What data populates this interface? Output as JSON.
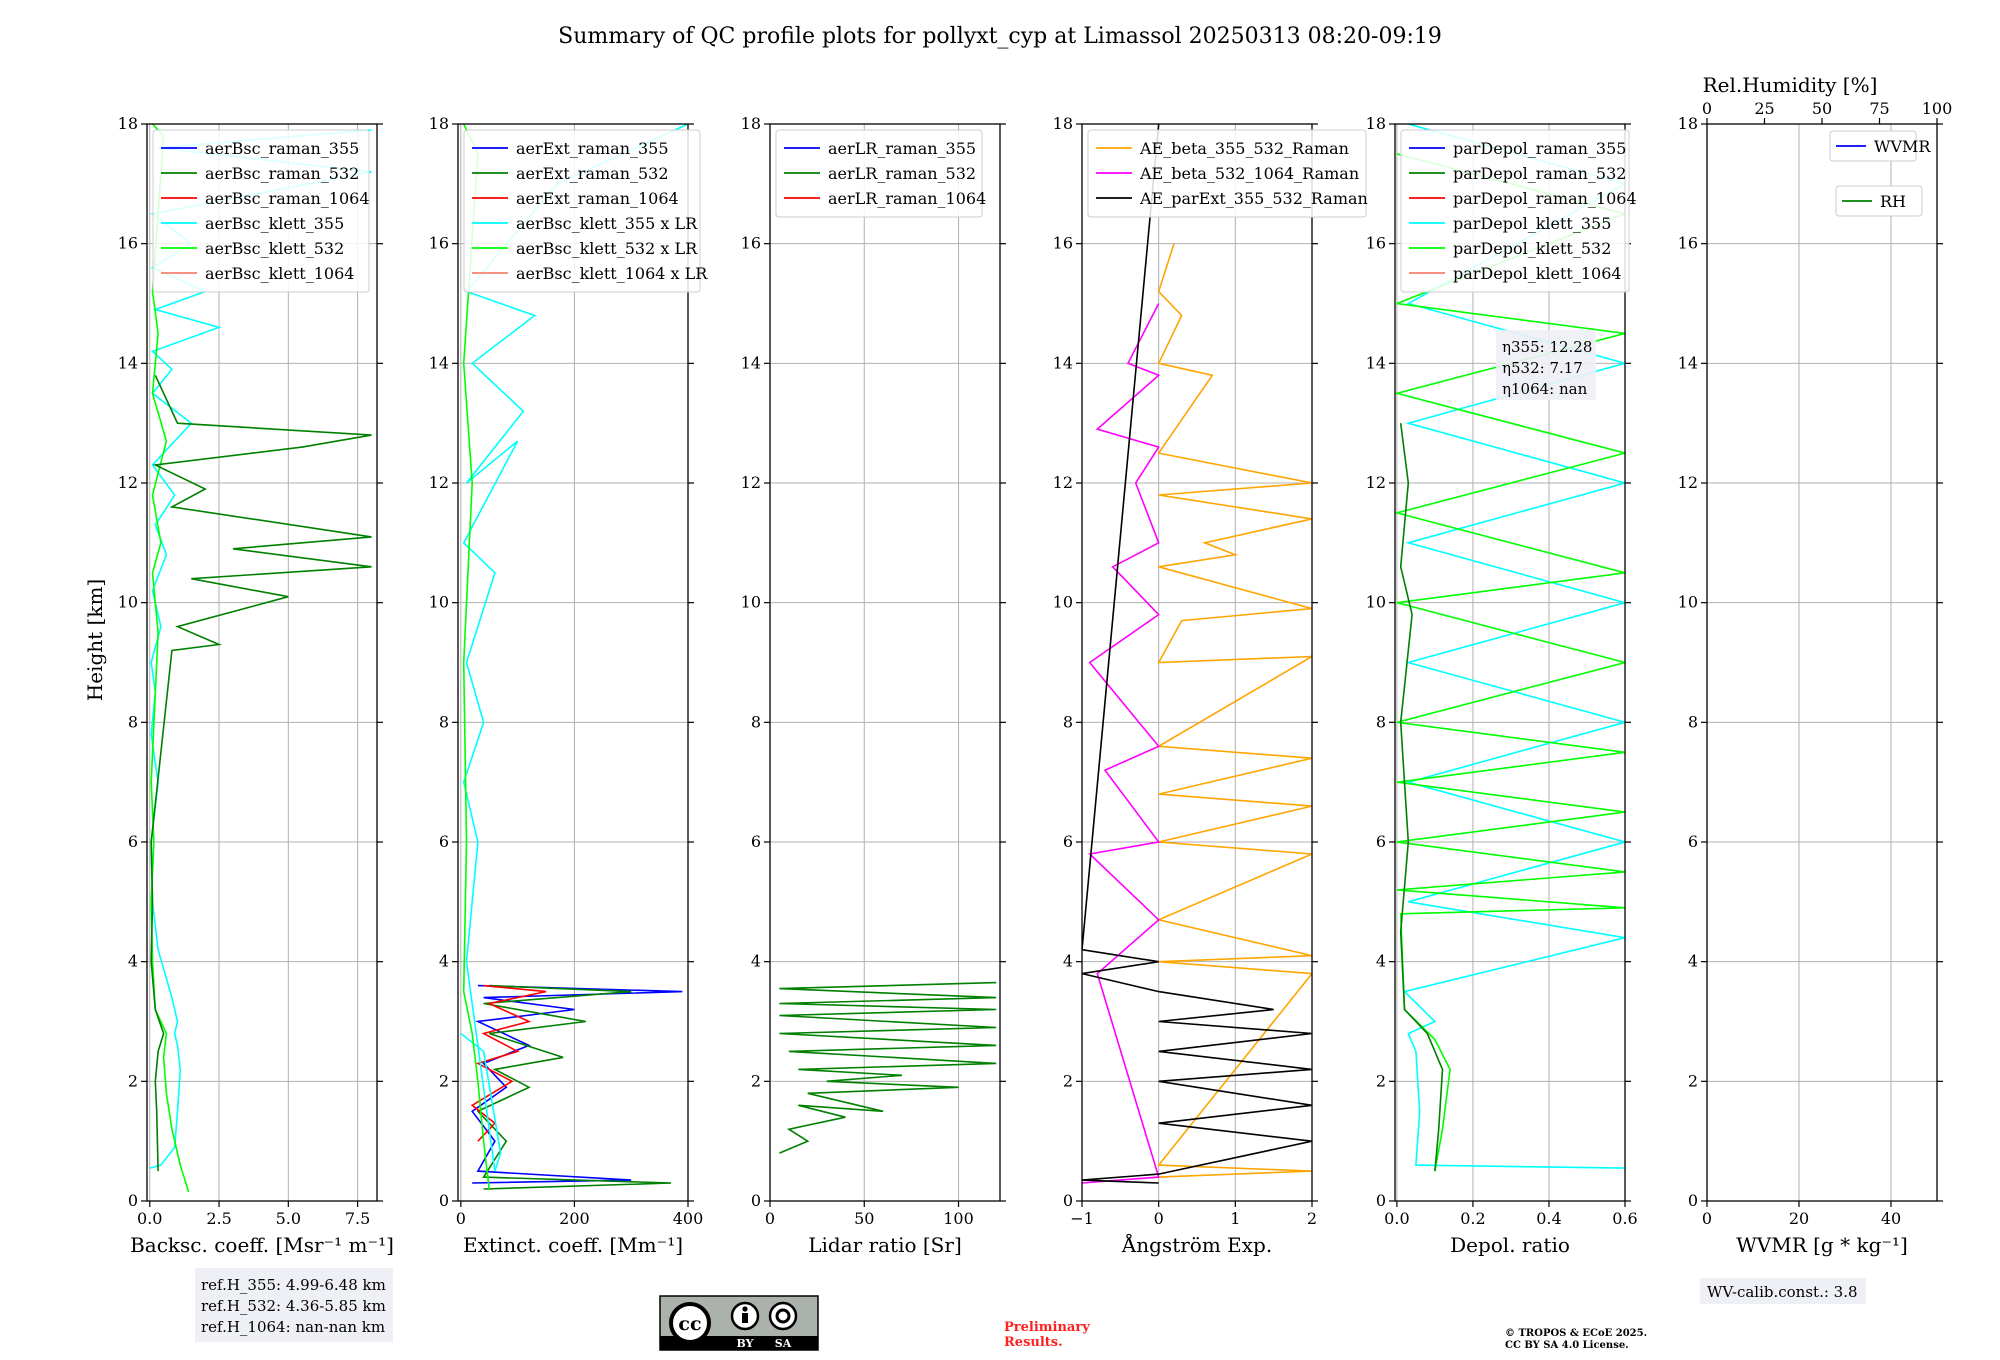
{
  "title": "Summary of QC profile plots for pollyxt_cyp at Limassol 20250313 08:20-09:19",
  "colors": {
    "blue": "#0000ff",
    "green": "#008000",
    "red": "#ff0000",
    "cyan": "#00ffff",
    "lime": "#00ff00",
    "salmon": "#fa8072",
    "orange": "#ffa500",
    "magenta": "#ff00ff",
    "black": "#000000",
    "grid": "#b0b0b0"
  },
  "chart_data": [
    {
      "id": "backscatter",
      "type": "line",
      "xlabel": "Backsc. coeff. [Msr⁻¹ m⁻¹]",
      "ylabel": "Height [km]",
      "xlim": [
        -0.1,
        8.2
      ],
      "ylim": [
        0,
        18
      ],
      "xticks": [
        0,
        2.5,
        5.0,
        7.5
      ],
      "xtick_labels": [
        "0.0",
        "2.5",
        "5.0",
        "7.5"
      ],
      "yticks": [
        0,
        2,
        4,
        6,
        8,
        10,
        12,
        14,
        16,
        18
      ],
      "legend": [
        "aerBsc_raman_355",
        "aerBsc_raman_532",
        "aerBsc_raman_1064",
        "aerBsc_klett_355",
        "aerBsc_klett_532",
        "aerBsc_klett_1064"
      ],
      "legend_colors": [
        "blue",
        "green",
        "red",
        "cyan",
        "lime",
        "salmon"
      ],
      "series": [
        {
          "name": "aerBsc_klett_355",
          "color": "cyan",
          "x": [
            0.0,
            0.4,
            0.9,
            1.0,
            1.1,
            1.0,
            0.9,
            1.0,
            0.8,
            0.3,
            0.1,
            0.05,
            0.3,
            0.05,
            0.2,
            0.05,
            0.4,
            0.1,
            0.6,
            0.2,
            0.9,
            0.1,
            1.5,
            0.1,
            0.8,
            0.1,
            2.5,
            0.2,
            2.0,
            0.1,
            1.5,
            0.1,
            8.0,
            0.3,
            8.0
          ],
          "y": [
            0.55,
            0.6,
            0.9,
            1.5,
            2.2,
            2.6,
            2.8,
            3.0,
            3.4,
            4.2,
            5.0,
            6.0,
            7.0,
            7.8,
            8.5,
            9.0,
            9.6,
            10.2,
            10.8,
            11.3,
            11.8,
            12.3,
            13.0,
            13.5,
            13.9,
            14.2,
            14.6,
            14.9,
            15.2,
            15.6,
            16.0,
            16.5,
            17.2,
            17.6,
            17.9
          ]
        },
        {
          "name": "aerBsc_klett_532",
          "color": "lime",
          "x": [
            1.4,
            1.1,
            0.8,
            0.6,
            0.5,
            0.6,
            0.2,
            0.1,
            0.05,
            0.15,
            0.05,
            0.3,
            0.1,
            0.4,
            0.1,
            0.6,
            0.1,
            0.3,
            0.1,
            0.5,
            0.1
          ],
          "y": [
            0.15,
            0.6,
            1.2,
            1.8,
            2.4,
            2.8,
            3.2,
            4.0,
            5.0,
            6.0,
            7.0,
            9.5,
            10.5,
            11.0,
            11.8,
            12.7,
            13.5,
            14.5,
            15.2,
            17.8,
            18.0
          ]
        },
        {
          "name": "aerBsc_raman_532",
          "color": "green",
          "x": [
            0.3,
            0.25,
            0.2,
            0.3,
            0.5,
            0.2,
            0.05,
            0.1,
            0.05,
            0.8,
            2.5,
            1.0,
            5.0,
            1.5,
            8.0,
            3.0,
            8.0,
            0.8,
            2.0,
            0.2,
            5.5,
            8.0,
            1.0,
            0.2
          ],
          "y": [
            0.5,
            1.5,
            2.0,
            2.5,
            2.8,
            3.2,
            4.0,
            5.0,
            6.0,
            9.2,
            9.3,
            9.6,
            10.1,
            10.4,
            10.6,
            10.9,
            11.1,
            11.6,
            11.9,
            12.3,
            12.6,
            12.8,
            13.0,
            13.8
          ]
        }
      ]
    },
    {
      "id": "extinction",
      "type": "line",
      "xlabel": "Extinct. coeff. [Mm⁻¹]",
      "xlim": [
        -5,
        400
      ],
      "ylim": [
        0,
        18
      ],
      "xticks": [
        0,
        200,
        400
      ],
      "xtick_labels": [
        "0",
        "200",
        "400"
      ],
      "yticks": [
        0,
        2,
        4,
        6,
        8,
        10,
        12,
        14,
        16,
        18
      ],
      "legend": [
        "aerExt_raman_355",
        "aerExt_raman_532",
        "aerExt_raman_1064",
        "aerBsc_klett_355 x LR",
        "aerBsc_klett_532 x LR",
        "aerBsc_klett_1064 x LR"
      ],
      "legend_colors": [
        "blue",
        "green",
        "red",
        "cyan",
        "lime",
        "salmon"
      ],
      "series": [
        {
          "name": "aerExt_raman_355",
          "color": "blue",
          "x": [
            20,
            300,
            30,
            60,
            20,
            80,
            40,
            120,
            30,
            200,
            40,
            390,
            30
          ],
          "y": [
            0.3,
            0.35,
            0.5,
            1.0,
            1.5,
            1.9,
            2.3,
            2.6,
            3.0,
            3.2,
            3.4,
            3.5,
            3.6
          ]
        },
        {
          "name": "aerExt_raman_532",
          "color": "green",
          "x": [
            40,
            370,
            40,
            80,
            30,
            120,
            60,
            180,
            50,
            220,
            40,
            300,
            50
          ],
          "y": [
            0.2,
            0.3,
            0.4,
            1.0,
            1.5,
            1.9,
            2.2,
            2.4,
            2.8,
            3.0,
            3.3,
            3.5,
            3.6
          ]
        },
        {
          "name": "aerExt_raman_1064",
          "color": "red",
          "x": [
            30,
            60,
            20,
            90,
            30,
            100,
            40,
            120,
            50,
            150,
            40
          ],
          "y": [
            1.0,
            1.3,
            1.6,
            2.0,
            2.3,
            2.5,
            2.8,
            3.0,
            3.3,
            3.5,
            3.6
          ]
        },
        {
          "name": "aerBsc_klett_355 x LR",
          "color": "cyan",
          "x": [
            0,
            40,
            70,
            60,
            10,
            30,
            5,
            40,
            10,
            60,
            5,
            100,
            10,
            110,
            20,
            130,
            10,
            170,
            400
          ],
          "y": [
            2.8,
            2.5,
            0.8,
            0.5,
            4.0,
            6.0,
            7.0,
            8.0,
            9.0,
            10.5,
            11.0,
            12.7,
            12.0,
            13.2,
            14.0,
            14.8,
            15.2,
            17.0,
            18.0
          ]
        },
        {
          "name": "aerBsc_klett_532 x LR",
          "color": "lime",
          "x": [
            50,
            40,
            30,
            20,
            5,
            10,
            5,
            20,
            5,
            30,
            5
          ],
          "y": [
            0.2,
            1.0,
            2.0,
            2.8,
            3.5,
            6.0,
            9.0,
            12.0,
            14.0,
            17.5,
            18.0
          ]
        }
      ]
    },
    {
      "id": "lidar_ratio",
      "type": "line",
      "xlabel": "Lidar ratio [Sr]",
      "xlim": [
        0,
        122
      ],
      "ylim": [
        0,
        18
      ],
      "xticks": [
        0,
        50,
        100
      ],
      "xtick_labels": [
        "0",
        "50",
        "100"
      ],
      "yticks": [
        0,
        2,
        4,
        6,
        8,
        10,
        12,
        14,
        16,
        18
      ],
      "legend": [
        "aerLR_raman_355",
        "aerLR_raman_532",
        "aerLR_raman_1064"
      ],
      "legend_colors": [
        "blue",
        "green",
        "red"
      ],
      "series": [
        {
          "name": "aerLR_raman_532",
          "color": "green",
          "x": [
            5,
            20,
            10,
            40,
            15,
            60,
            20,
            100,
            30,
            70,
            15,
            120,
            10,
            120,
            5,
            120,
            5,
            120,
            5,
            120,
            5,
            120
          ],
          "y": [
            0.8,
            1.0,
            1.2,
            1.4,
            1.6,
            1.5,
            1.8,
            1.9,
            2.0,
            2.1,
            2.2,
            2.3,
            2.5,
            2.6,
            2.8,
            2.9,
            3.1,
            3.2,
            3.3,
            3.4,
            3.55,
            3.65
          ]
        }
      ]
    },
    {
      "id": "angstrom",
      "type": "line",
      "xlabel": "Ångström Exp.",
      "xlim": [
        -1,
        2
      ],
      "ylim": [
        0,
        18
      ],
      "xticks": [
        -1,
        0,
        1,
        2
      ],
      "xtick_labels": [
        "−1",
        "0",
        "1",
        "2"
      ],
      "yticks": [
        0,
        2,
        4,
        6,
        8,
        10,
        12,
        14,
        16,
        18
      ],
      "legend": [
        "AE_beta_355_532_Raman",
        "AE_beta_532_1064_Raman",
        "AE_parExt_355_532_Raman"
      ],
      "legend_colors": [
        "orange",
        "magenta",
        "black"
      ],
      "series": [
        {
          "name": "AE_beta_355_532_Raman",
          "color": "orange",
          "x": [
            0,
            2,
            0,
            2,
            0,
            2,
            0,
            2,
            0,
            2,
            0,
            2,
            0,
            2,
            0,
            0.3,
            2,
            0,
            1.0,
            0.6,
            2,
            0,
            2,
            0,
            0.7,
            0,
            0.3,
            0,
            0.2
          ],
          "y": [
            0.4,
            0.5,
            0.6,
            3.8,
            4.0,
            4.1,
            4.7,
            5.8,
            6.0,
            6.6,
            6.8,
            7.4,
            7.6,
            9.1,
            9.0,
            9.7,
            9.9,
            10.6,
            10.8,
            11.0,
            11.4,
            11.8,
            12.0,
            12.5,
            13.8,
            14.0,
            14.8,
            15.2,
            16.0
          ]
        },
        {
          "name": "AE_beta_532_1064_Raman",
          "color": "magenta",
          "x": [
            -1,
            0,
            -0.8,
            0,
            -0.9,
            0,
            -0.7,
            0,
            -0.9,
            0,
            -0.6,
            0,
            -0.3,
            0,
            -0.8,
            0,
            -0.4,
            0
          ],
          "y": [
            0.3,
            0.4,
            3.8,
            4.7,
            5.8,
            6.0,
            7.2,
            7.6,
            9.0,
            9.8,
            10.6,
            11.0,
            12.0,
            12.6,
            12.9,
            13.8,
            14.0,
            15.0
          ]
        },
        {
          "name": "AE_parExt_355_532_Raman",
          "color": "black",
          "x": [
            0,
            -1,
            0,
            2,
            0,
            2,
            0,
            2,
            0,
            2,
            0,
            1.5,
            0,
            -1,
            0,
            -1,
            0
          ],
          "y": [
            0.3,
            0.35,
            0.45,
            1.0,
            1.3,
            1.6,
            2.0,
            2.2,
            2.5,
            2.8,
            3.0,
            3.2,
            3.5,
            3.8,
            4.0,
            4.2,
            18.0
          ]
        }
      ]
    },
    {
      "id": "depol",
      "type": "line",
      "xlabel": "Depol. ratio",
      "xlim": [
        -0.005,
        0.6
      ],
      "ylim": [
        0,
        18
      ],
      "xticks": [
        0.0,
        0.2,
        0.4,
        0.6
      ],
      "xtick_labels": [
        "0.0",
        "0.2",
        "0.4",
        "0.6"
      ],
      "yticks": [
        0,
        2,
        4,
        6,
        8,
        10,
        12,
        14,
        16,
        18
      ],
      "legend": [
        "parDepol_raman_355",
        "parDepol_raman_532",
        "parDepol_raman_1064",
        "parDepol_klett_355",
        "parDepol_klett_532",
        "parDepol_klett_1064"
      ],
      "legend_colors": [
        "blue",
        "green",
        "red",
        "cyan",
        "lime",
        "salmon"
      ],
      "annotation": [
        "η355: 12.28",
        "η532: 7.17",
        "η1064: nan"
      ],
      "series": [
        {
          "name": "parDepol_klett_355",
          "color": "cyan",
          "x": [
            0.6,
            0.05,
            0.06,
            0.05,
            0.03,
            0.1,
            0.02,
            0.6,
            0.03,
            0.6,
            0.03,
            0.6,
            0.03,
            0.6,
            0.03,
            0.6,
            0.03,
            0.6,
            0.03,
            0.6,
            0.03
          ],
          "y": [
            0.55,
            0.6,
            1.5,
            2.5,
            2.8,
            3.0,
            3.5,
            4.4,
            5.0,
            6.0,
            7.0,
            8.0,
            9.0,
            10.0,
            11.0,
            12.0,
            13.0,
            14.0,
            15.0,
            17.0,
            18.0
          ]
        },
        {
          "name": "parDepol_klett_532",
          "color": "lime",
          "x": [
            0.1,
            0.12,
            0.14,
            0.1,
            0.02,
            0.01,
            0.6,
            0.0,
            0.6,
            0.0,
            0.6,
            0.0,
            0.6,
            0.0,
            0.6,
            0.0,
            0.6,
            0.0,
            0.6,
            0.0,
            0.6,
            0.0,
            0.6,
            0.0
          ],
          "y": [
            0.5,
            1.2,
            2.2,
            2.7,
            3.2,
            4.8,
            4.9,
            5.2,
            5.5,
            6.0,
            6.5,
            7.0,
            7.5,
            8.0,
            9.0,
            10.0,
            10.5,
            11.5,
            12.5,
            13.5,
            14.5,
            15.0,
            16.5,
            17.5
          ]
        },
        {
          "name": "parDepol_raman_532",
          "color": "green",
          "x": [
            0.1,
            0.11,
            0.12,
            0.08,
            0.02,
            0.01,
            0.03,
            0.01,
            0.04,
            0.01,
            0.03,
            0.01
          ],
          "y": [
            0.5,
            1.2,
            2.2,
            2.8,
            3.2,
            4.5,
            6.0,
            8.0,
            9.8,
            10.6,
            12.0,
            13.0
          ]
        }
      ]
    },
    {
      "id": "wvmr",
      "type": "line",
      "xlabel": "WVMR [g * kg⁻¹]",
      "xlim": [
        0,
        50
      ],
      "ylim": [
        0,
        18
      ],
      "xticks": [
        0,
        20,
        40
      ],
      "xtick_labels": [
        "0",
        "20",
        "40"
      ],
      "yticks": [
        0,
        2,
        4,
        6,
        8,
        10,
        12,
        14,
        16,
        18
      ],
      "top_xlabel": "Rel.Humidity [%]",
      "top_xticks": [
        0,
        25,
        50,
        75,
        100
      ],
      "top_xtick_labels": [
        "0",
        "25",
        "50",
        "75",
        "100"
      ],
      "legend": [
        "WVMR",
        "RH"
      ],
      "legend_colors": [
        "blue",
        "green"
      ],
      "series": []
    }
  ],
  "footer": {
    "ref_box": [
      "ref.H_355: 4.99-6.48 km",
      "ref.H_532: 4.36-5.85 km",
      "ref.H_1064: nan-nan km"
    ],
    "license_badge": [
      "cc",
      "BY",
      "SA"
    ],
    "preliminary": [
      "Preliminary",
      "Results."
    ],
    "copyright": [
      "© TROPOS & ECoE 2025.",
      "CC BY SA 4.0 License."
    ],
    "wv_calib": "WV-calib.const.: 3.8"
  }
}
